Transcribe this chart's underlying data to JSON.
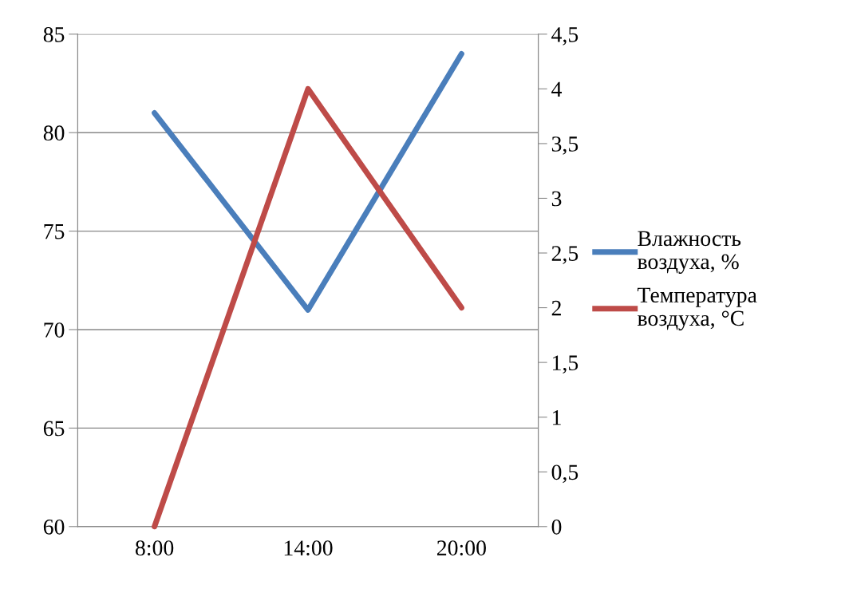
{
  "chart_data": {
    "type": "line",
    "categories": [
      "8:00",
      "14:00",
      "20:00"
    ],
    "series": [
      {
        "name": "Влажность\nвоздуха, %",
        "color": "#4a7ebb",
        "values": [
          81,
          71,
          84
        ]
      },
      {
        "name": "Температура\nвоздуха, °C",
        "color": "#be4b48",
        "values": [
          0,
          4,
          2
        ],
        "axis": "y2"
      }
    ],
    "ylim": [
      60,
      85
    ],
    "yticks": [
      60,
      65,
      70,
      75,
      80,
      85
    ],
    "y2lim": [
      0,
      4.5
    ],
    "y2ticks": [
      0,
      {
        "value": 0.5,
        "label": "0,5"
      },
      1,
      {
        "value": 1.5,
        "label": "1,5"
      },
      2,
      {
        "value": 2.5,
        "label": "2,5"
      },
      3,
      {
        "value": 3.5,
        "label": "3,5"
      },
      4,
      {
        "value": 4.5,
        "label": "4,5"
      }
    ],
    "grid": "y",
    "legend": "right",
    "marker": "none",
    "line_style": "solid"
  }
}
